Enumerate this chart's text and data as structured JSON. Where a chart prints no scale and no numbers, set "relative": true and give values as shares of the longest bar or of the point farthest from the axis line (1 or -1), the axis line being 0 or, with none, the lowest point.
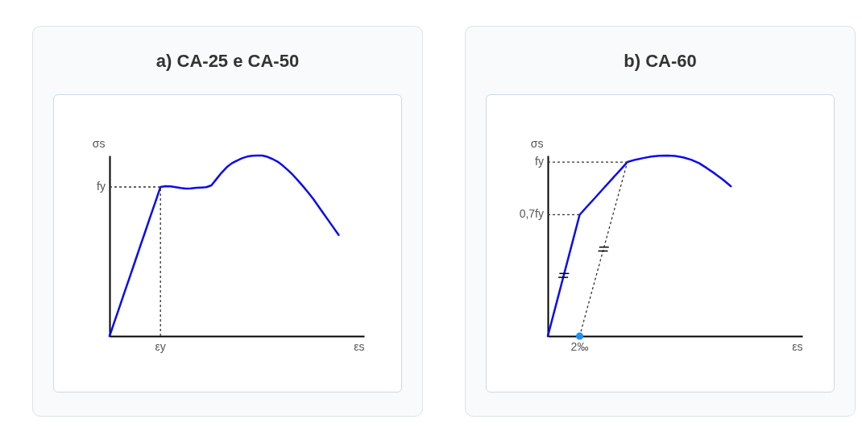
{
  "chart_data": [
    {
      "type": "line",
      "title": "a) CA-25 e CA-50",
      "xlabel": "εs",
      "ylabel": "σs",
      "relative": true,
      "categories": [
        null,
        null,
        null,
        null,
        null,
        null,
        null,
        null,
        null,
        null,
        null,
        null,
        null,
        null,
        null,
        null,
        null,
        null,
        null,
        null,
        null,
        null,
        null,
        null,
        null,
        null,
        null,
        null,
        null,
        null,
        null,
        null,
        null,
        null,
        null,
        null,
        null,
        null,
        null,
        null,
        null,
        null,
        null,
        null,
        null,
        null,
        null,
        null,
        null,
        null,
        null
      ],
      "series": [
        {
          "color": "#0a0af5",
          "values": [
            0,
            0.083,
            0.165,
            0.248,
            0.33,
            0.413,
            0.496,
            0.578,
            0.661,
            0.743,
            0.826,
            0.83,
            0.829,
            0.825,
            0.82,
            0.817,
            0.818,
            0.821,
            0.823,
            0.825,
            0.835,
            0.87,
            0.905,
            0.935,
            0.957,
            0.972,
            0.985,
            0.994,
            0.999,
            1,
            1,
            0.993,
            0.981,
            0.966,
            0.945,
            0.92,
            0.893,
            0.862,
            0.83,
            0.796,
            0.76,
            0.72,
            0.68,
            0.64,
            0.6,
            0.56,
            null,
            null,
            null,
            null,
            null
          ]
        }
      ],
      "ref_lines": [
        {
          "axis": "y",
          "value": 0.826,
          "label": "fy",
          "color": "#333333",
          "line_style": "dotted"
        }
      ],
      "annotations": [
        "εy"
      ]
    },
    {
      "type": "line",
      "title": "b) CA-60",
      "xlabel": "εs",
      "ylabel": "σs",
      "relative": true,
      "annotations": [
        "2‰"
      ],
      "categories": [
        null,
        null,
        null,
        null,
        null,
        null,
        null,
        null,
        null,
        null,
        null,
        null,
        null,
        null,
        null,
        null,
        null,
        null,
        null,
        null,
        null,
        null,
        null,
        null,
        null,
        null,
        null,
        null,
        null,
        null,
        null,
        null,
        null
      ],
      "series": [
        {
          "color": "#0a0af5",
          "values": [
            0,
            0.168,
            0.336,
            0.504,
            0.672,
            0.721,
            0.769,
            0.818,
            0.867,
            0.915,
            0.964,
            0.977,
            0.986,
            0.994,
            0.999,
            1,
            0.998,
            0.99,
            0.977,
            0.958,
            0.93,
            0.9,
            0.867,
            0.83,
            null,
            null,
            null,
            null,
            null,
            null,
            null,
            null,
            null
          ]
        }
      ],
      "ref_lines": [
        {
          "axis": "y",
          "value": 0.964,
          "label": "fy",
          "color": "#333333",
          "line_style": "dotted"
        },
        {
          "axis": "y",
          "value": 0.672,
          "label": "0,7fy",
          "color": "#333333",
          "line_style": "dotted"
        }
      ]
    }
  ]
}
